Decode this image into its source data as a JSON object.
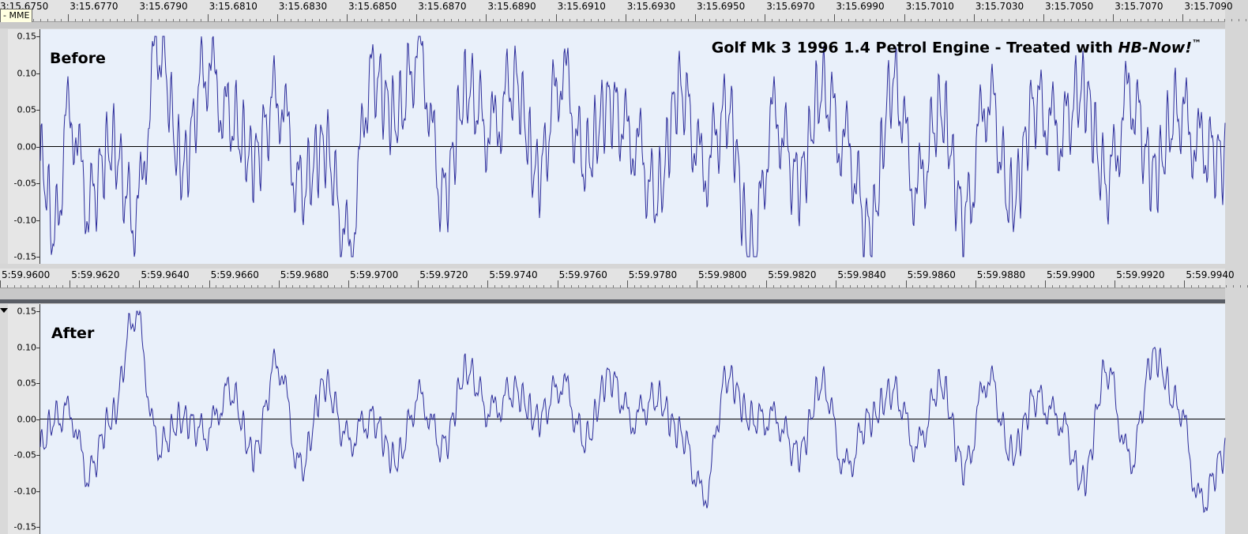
{
  "top_ruler": {
    "labels": [
      "3:15.6750",
      "3:15.6770",
      "3:15.6790",
      "3:15.6810",
      "3:15.6830",
      "3:15.6850",
      "3:15.6870",
      "3:15.6890",
      "3:15.6910",
      "3:15.6930",
      "3:15.6950",
      "3:15.6970",
      "3:15.6990",
      "3:15.7010",
      "3:15.7030",
      "3:15.7050",
      "3:15.7070",
      "3:15.7090"
    ]
  },
  "bottom_ruler": {
    "labels": [
      "5:59.9600",
      "5:59.9620",
      "5:59.9640",
      "5:59.9660",
      "5:59.9680",
      "5:59.9700",
      "5:59.9720",
      "5:59.9740",
      "5:59.9760",
      "5:59.9780",
      "5:59.9800",
      "5:59.9820",
      "5:59.9840",
      "5:59.9860",
      "5:59.9880",
      "5:59.9900",
      "5:59.9920",
      "5:59.9940"
    ]
  },
  "tooltip": {
    "text": "- MME"
  },
  "caption": {
    "main": "Golf Mk 3 1996 1.4 Petrol Engine - Treated with ",
    "product": "HB-Now!",
    "mark": "™"
  },
  "tracks": [
    {
      "label": "Before",
      "y_labels": [
        "0.15",
        "0.10",
        "0.05",
        "0.00",
        "-0.05",
        "-0.10",
        "-0.15"
      ],
      "waveform_color": "#2b2b9a"
    },
    {
      "label": "After",
      "y_labels": [
        "0.15",
        "0.10",
        "0.05",
        "0.00",
        "-0.05",
        "-0.10",
        "-0.15"
      ],
      "waveform_color": "#2b2b9a"
    }
  ],
  "chart_data": [
    {
      "type": "line",
      "title": "Before",
      "ylim": [
        -0.155,
        0.155
      ],
      "series": [
        {
          "name": "Before",
          "x": [
            0.0,
            0.012,
            0.025,
            0.04,
            0.06,
            0.08,
            0.1,
            0.12,
            0.14,
            0.16,
            0.18,
            0.2,
            0.22,
            0.24,
            0.26,
            0.28,
            0.3,
            0.32,
            0.34,
            0.36,
            0.38,
            0.4,
            0.42,
            0.44,
            0.46,
            0.48,
            0.5,
            0.52,
            0.54,
            0.56,
            0.58,
            0.6,
            0.62,
            0.64,
            0.66,
            0.68,
            0.7,
            0.72,
            0.74,
            0.76,
            0.78,
            0.8,
            0.82,
            0.84,
            0.86,
            0.88,
            0.9,
            0.92,
            0.94,
            0.96,
            0.98,
            1.0
          ],
          "y": [
            -0.02,
            -0.12,
            0.05,
            -0.08,
            0.0,
            -0.1,
            0.14,
            -0.03,
            0.11,
            0.04,
            -0.02,
            0.07,
            -0.06,
            0.0,
            -0.14,
            0.1,
            0.04,
            0.13,
            -0.07,
            0.08,
            0.02,
            0.09,
            -0.04,
            0.1,
            -0.02,
            0.06,
            0.01,
            -0.07,
            0.08,
            -0.03,
            0.05,
            -0.15,
            0.04,
            -0.05,
            0.08,
            0.0,
            -0.12,
            0.09,
            -0.06,
            0.05,
            -0.1,
            0.07,
            -0.08,
            0.06,
            0.02,
            0.08,
            -0.05,
            0.07,
            -0.04,
            0.05,
            0.0,
            -0.02
          ]
        }
      ]
    },
    {
      "type": "line",
      "title": "After",
      "ylim": [
        -0.155,
        0.155
      ],
      "series": [
        {
          "name": "After",
          "x": [
            0.0,
            0.012,
            0.025,
            0.04,
            0.06,
            0.08,
            0.1,
            0.12,
            0.14,
            0.16,
            0.18,
            0.2,
            0.22,
            0.24,
            0.26,
            0.28,
            0.3,
            0.32,
            0.34,
            0.36,
            0.38,
            0.4,
            0.42,
            0.44,
            0.46,
            0.48,
            0.5,
            0.52,
            0.54,
            0.56,
            0.58,
            0.6,
            0.62,
            0.64,
            0.66,
            0.68,
            0.7,
            0.72,
            0.74,
            0.76,
            0.78,
            0.8,
            0.82,
            0.84,
            0.86,
            0.88,
            0.9,
            0.92,
            0.94,
            0.96,
            0.98,
            1.0
          ],
          "y": [
            -0.04,
            0.0,
            0.01,
            -0.08,
            0.0,
            0.15,
            -0.04,
            0.0,
            -0.02,
            0.04,
            -0.05,
            0.08,
            -0.07,
            0.05,
            -0.03,
            0.0,
            -0.06,
            0.03,
            -0.04,
            0.07,
            0.01,
            0.04,
            0.0,
            0.05,
            -0.03,
            0.06,
            0.0,
            0.03,
            -0.02,
            -0.11,
            0.06,
            0.0,
            0.0,
            -0.05,
            0.05,
            -0.07,
            0.0,
            0.04,
            -0.04,
            0.05,
            -0.07,
            0.06,
            -0.05,
            0.03,
            0.0,
            -0.09,
            0.07,
            -0.06,
            0.09,
            0.02,
            -0.12,
            -0.05
          ]
        }
      ]
    }
  ]
}
